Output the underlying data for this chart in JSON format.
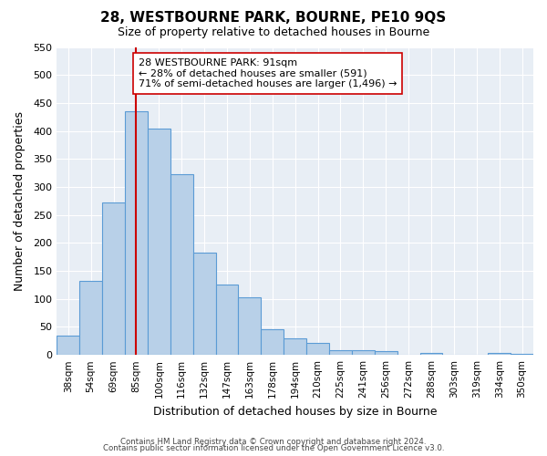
{
  "title": "28, WESTBOURNE PARK, BOURNE, PE10 9QS",
  "subtitle": "Size of property relative to detached houses in Bourne",
  "xlabel": "Distribution of detached houses by size in Bourne",
  "ylabel": "Number of detached properties",
  "bar_labels": [
    "38sqm",
    "54sqm",
    "69sqm",
    "85sqm",
    "100sqm",
    "116sqm",
    "132sqm",
    "147sqm",
    "163sqm",
    "178sqm",
    "194sqm",
    "210sqm",
    "225sqm",
    "241sqm",
    "256sqm",
    "272sqm",
    "288sqm",
    "303sqm",
    "319sqm",
    "334sqm",
    "350sqm"
  ],
  "bar_values": [
    35,
    133,
    272,
    435,
    405,
    323,
    182,
    126,
    103,
    46,
    30,
    21,
    8,
    9,
    7,
    1,
    3,
    1,
    1,
    3,
    2
  ],
  "bar_color": "#b8d0e8",
  "bar_edge_color": "#5b9bd5",
  "vline_x": 3.5,
  "vline_color": "#cc0000",
  "ylim": [
    0,
    550
  ],
  "yticks": [
    0,
    50,
    100,
    150,
    200,
    250,
    300,
    350,
    400,
    450,
    500,
    550
  ],
  "annotation_box_text": "28 WESTBOURNE PARK: 91sqm\n← 28% of detached houses are smaller (591)\n71% of semi-detached houses are larger (1,496) →",
  "footer_line1": "Contains HM Land Registry data © Crown copyright and database right 2024.",
  "footer_line2": "Contains public sector information licensed under the Open Government Licence v3.0.",
  "ax_facecolor": "#e8eef5",
  "fig_width": 6.0,
  "fig_height": 5.0,
  "background_color": "#ffffff"
}
